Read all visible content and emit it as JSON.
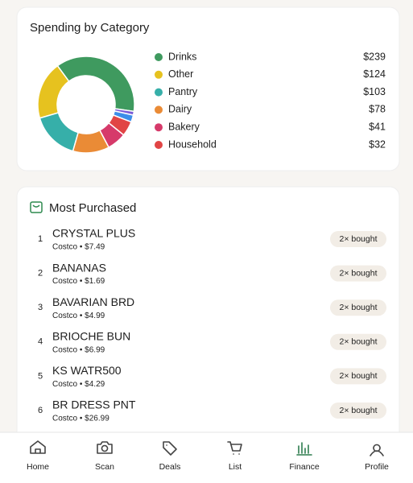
{
  "chart_data": {
    "type": "donut",
    "title": "Spending by Category",
    "categories": [
      "Drinks",
      "Other",
      "Pantry",
      "Dairy",
      "Bakery",
      "Household",
      null,
      null
    ],
    "values": [
      239,
      124,
      103,
      78,
      41,
      32,
      15,
      8
    ],
    "value_labels": [
      "$239",
      "$124",
      "$103",
      "$78",
      "$41",
      "$32",
      null,
      null
    ],
    "colors": [
      "#3f9a5f",
      "#e6c21f",
      "#36afa9",
      "#ea8b36",
      "#d63a6a",
      "#e14545",
      "#3d8ee9",
      "#7a5bd6"
    ]
  },
  "most_purchased": {
    "title": "Most Purchased",
    "items": [
      {
        "rank": "1",
        "name": "CRYSTAL PLUS",
        "detail": "Costco • $7.49",
        "badge": "2× bought"
      },
      {
        "rank": "2",
        "name": "BANANAS",
        "detail": "Costco • $1.69",
        "badge": "2× bought"
      },
      {
        "rank": "3",
        "name": "BAVARIAN BRD",
        "detail": "Costco • $4.99",
        "badge": "2× bought"
      },
      {
        "rank": "4",
        "name": "BRIOCHE BUN",
        "detail": "Costco • $6.99",
        "badge": "2× bought"
      },
      {
        "rank": "5",
        "name": "KS WATR500",
        "detail": "Costco • $4.29",
        "badge": "2× bought"
      },
      {
        "rank": "6",
        "name": "BR DRESS PNT",
        "detail": "Costco • $26.99",
        "badge": "2× bought"
      }
    ]
  },
  "nav": {
    "items": [
      "Home",
      "Scan",
      "Deals",
      "List",
      "Finance",
      "Profile"
    ],
    "active": "Finance"
  }
}
